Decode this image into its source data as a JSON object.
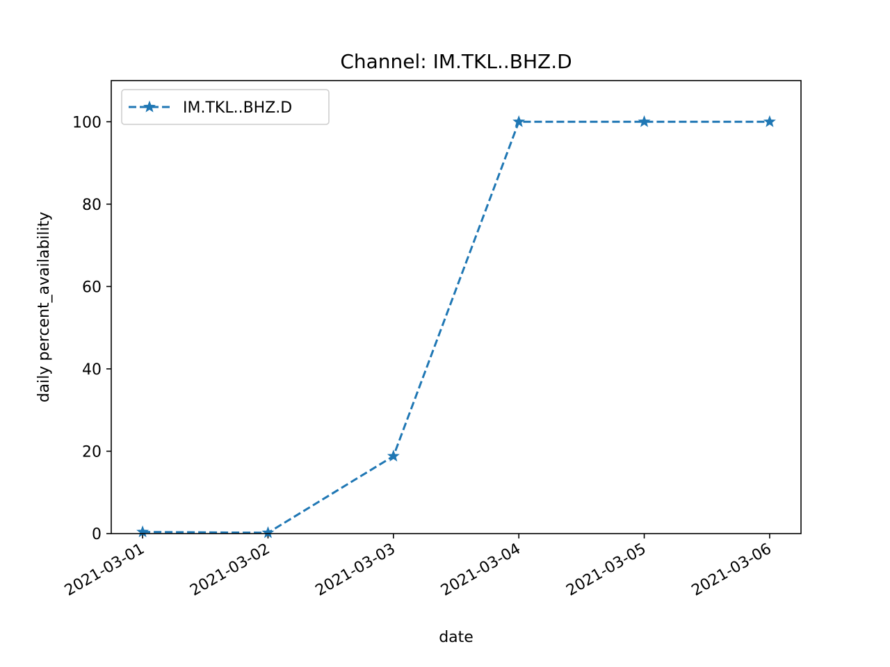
{
  "chart_data": {
    "type": "line",
    "title": "Channel: IM.TKL..BHZ.D",
    "xlabel": "date",
    "ylabel": "daily percent_availability",
    "x": [
      "2021-03-01",
      "2021-03-02",
      "2021-03-03",
      "2021-03-04",
      "2021-03-05",
      "2021-03-06"
    ],
    "series": [
      {
        "name": "IM.TKL..BHZ.D",
        "values": [
          0.4,
          0.2,
          18.8,
          100,
          100,
          100
        ],
        "color": "#1f77b4",
        "linestyle": "dashed",
        "marker": "star"
      }
    ],
    "ylim": [
      0,
      110
    ],
    "yticks": [
      0,
      20,
      40,
      60,
      80,
      100
    ],
    "grid": false,
    "legend": "upper-left"
  }
}
